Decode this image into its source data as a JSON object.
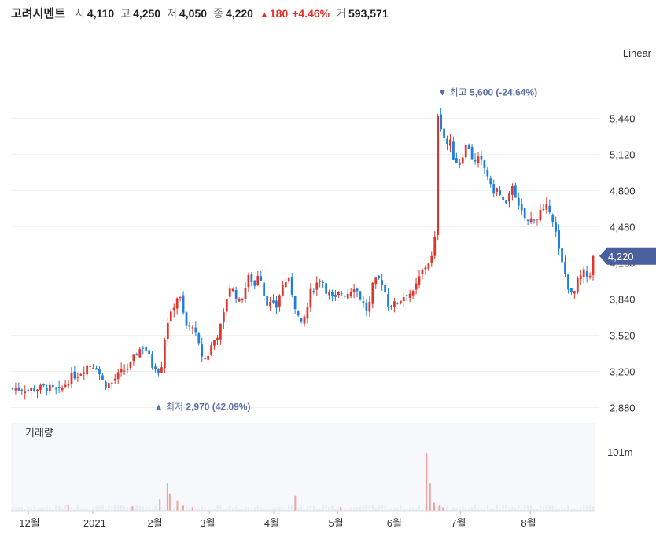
{
  "header": {
    "name": "고려시멘트",
    "open_label": "시",
    "open": "4,110",
    "high_label": "고",
    "high": "4,250",
    "low_label": "저",
    "low": "4,050",
    "close_label": "종",
    "close": "4,220",
    "change_arrow": "▲",
    "change": "180",
    "change_pct": "+4.46%",
    "volume_label": "거",
    "volume": "593,571"
  },
  "scale_mode": "Linear",
  "colors": {
    "up": "#e0352b",
    "down": "#1e7fe0",
    "badge": "#4a5f9e",
    "annotation": "#5a6fa8"
  },
  "chart_data": {
    "type": "candlestick",
    "y_ticks": [
      "2,880",
      "3,200",
      "3,520",
      "3,840",
      "4,160",
      "4,480",
      "4,800",
      "5,120",
      "5,440"
    ],
    "y_tick_values": [
      2880,
      3200,
      3520,
      3840,
      4160,
      4480,
      4800,
      5120,
      5440
    ],
    "ylim": [
      2800,
      5790
    ],
    "x_ticks": [
      "12월",
      "2021",
      "2월",
      "3월",
      "4월",
      "5월",
      "6월",
      "7월",
      "8월"
    ],
    "current_price": "4,220",
    "current_price_value": 4220,
    "max_annotation": {
      "arrow": "▼",
      "label": "최고",
      "value": "5,600",
      "pct": "(-24.64%)",
      "price": 5600
    },
    "min_annotation": {
      "arrow": "▲",
      "label": "최저",
      "value": "2,970",
      "pct": "(42.09%)",
      "price": 2970
    },
    "volume_title": "거래량",
    "volume_tick": "101m",
    "volume_tick_value": 101,
    "trading_days": 188,
    "close_path": [
      [
        0,
        3050
      ],
      [
        10,
        3040
      ],
      [
        20,
        3060
      ],
      [
        28,
        3020
      ],
      [
        35,
        3150
      ],
      [
        40,
        3180
      ],
      [
        45,
        3260
      ],
      [
        50,
        3250
      ],
      [
        55,
        3080
      ],
      [
        60,
        3100
      ],
      [
        62,
        3150
      ],
      [
        66,
        3200
      ],
      [
        70,
        3240
      ],
      [
        75,
        3380
      ],
      [
        79,
        3430
      ],
      [
        82,
        3320
      ],
      [
        84,
        3240
      ],
      [
        87,
        3260
      ],
      [
        88,
        3150
      ],
      [
        90,
        3320
      ],
      [
        92,
        3620
      ],
      [
        95,
        3700
      ],
      [
        98,
        3850
      ],
      [
        100,
        3870
      ],
      [
        103,
        3660
      ],
      [
        105,
        3560
      ],
      [
        108,
        3620
      ],
      [
        110,
        3500
      ],
      [
        113,
        3350
      ],
      [
        116,
        3300
      ],
      [
        120,
        3460
      ],
      [
        123,
        3530
      ],
      [
        126,
        3650
      ],
      [
        128,
        3830
      ],
      [
        130,
        3950
      ],
      [
        133,
        3900
      ],
      [
        136,
        3800
      ],
      [
        139,
        3920
      ],
      [
        142,
        4050
      ],
      [
        145,
        3950
      ],
      [
        148,
        4120
      ],
      [
        150,
        3920
      ],
      [
        152,
        3820
      ],
      [
        155,
        3790
      ],
      [
        158,
        3760
      ],
      [
        160,
        3880
      ],
      [
        163,
        4000
      ],
      [
        166,
        3990
      ],
      [
        170,
        3740
      ],
      [
        173,
        3600
      ],
      [
        176,
        3720
      ],
      [
        179,
        3920
      ],
      [
        182,
        3970
      ],
      [
        185,
        4040
      ],
      [
        188,
        3920
      ],
      [
        193,
        3820
      ],
      [
        196,
        3900
      ],
      [
        200,
        3880
      ],
      [
        205,
        3960
      ],
      [
        210,
        3800
      ],
      [
        213,
        3720
      ],
      [
        216,
        3960
      ],
      [
        219,
        4020
      ],
      [
        222,
        3980
      ],
      [
        225,
        3800
      ],
      [
        228,
        3780
      ],
      [
        231,
        3820
      ],
      [
        234,
        3860
      ],
      [
        237,
        3900
      ],
      [
        240,
        3880
      ],
      [
        243,
        4000
      ],
      [
        246,
        4100
      ],
      [
        249,
        4160
      ],
      [
        251,
        4200
      ],
      [
        253,
        4250
      ],
      [
        254,
        5540
      ],
      [
        256,
        5420
      ],
      [
        258,
        5300
      ],
      [
        260,
        5200
      ],
      [
        262,
        5250
      ],
      [
        264,
        5100
      ],
      [
        266,
        5060
      ],
      [
        268,
        5040
      ],
      [
        270,
        5130
      ],
      [
        272,
        5200
      ],
      [
        274,
        5180
      ],
      [
        276,
        5060
      ],
      [
        278,
        5030
      ],
      [
        280,
        5100
      ],
      [
        282,
        5000
      ],
      [
        284,
        4990
      ],
      [
        286,
        4840
      ],
      [
        288,
        4790
      ],
      [
        290,
        4820
      ],
      [
        292,
        4760
      ],
      [
        294,
        4700
      ],
      [
        296,
        4660
      ],
      [
        298,
        4760
      ],
      [
        300,
        4880
      ],
      [
        302,
        4720
      ],
      [
        304,
        4600
      ],
      [
        306,
        4600
      ],
      [
        308,
        4520
      ],
      [
        310,
        4520
      ],
      [
        312,
        4580
      ],
      [
        314,
        4540
      ],
      [
        316,
        4620
      ],
      [
        318,
        4600
      ],
      [
        320,
        4650
      ],
      [
        322,
        4640
      ],
      [
        324,
        4540
      ],
      [
        326,
        4400
      ],
      [
        328,
        4220
      ],
      [
        330,
        4120
      ],
      [
        332,
        4020
      ],
      [
        334,
        3900
      ],
      [
        336,
        3850
      ],
      [
        338,
        3980
      ],
      [
        340,
        4020
      ],
      [
        342,
        4080
      ],
      [
        344,
        4040
      ],
      [
        346,
        4060
      ],
      [
        348,
        4220
      ]
    ],
    "volume_spikes": [
      {
        "day_pos": 0.098,
        "value": 10
      },
      {
        "day_pos": 0.208,
        "value": 8
      },
      {
        "day_pos": 0.255,
        "value": 20
      },
      {
        "day_pos": 0.268,
        "value": 48
      },
      {
        "day_pos": 0.272,
        "value": 30
      },
      {
        "day_pos": 0.285,
        "value": 18
      },
      {
        "day_pos": 0.295,
        "value": 9
      },
      {
        "day_pos": 0.311,
        "value": 6
      },
      {
        "day_pos": 0.487,
        "value": 26
      },
      {
        "day_pos": 0.565,
        "value": 7
      },
      {
        "day_pos": 0.712,
        "value": 99
      },
      {
        "day_pos": 0.718,
        "value": 47
      },
      {
        "day_pos": 0.725,
        "value": 14
      },
      {
        "day_pos": 0.734,
        "value": 9
      },
      {
        "day_pos": 0.74,
        "value": 6
      }
    ]
  }
}
